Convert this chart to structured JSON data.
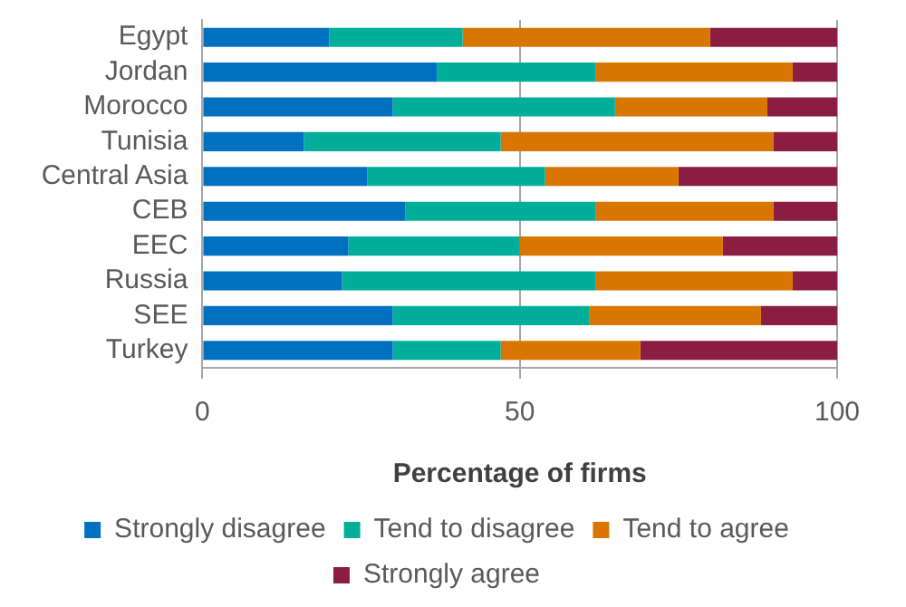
{
  "chart_data": {
    "type": "bar",
    "orientation": "horizontal",
    "stacked": true,
    "xlabel": "Percentage of firms",
    "categories": [
      "Egypt",
      "Jordan",
      "Morocco",
      "Tunisia",
      "Central Asia",
      "CEB",
      "EEC",
      "Russia",
      "SEE",
      "Turkey"
    ],
    "series": [
      {
        "name": "Strongly disagree",
        "color": "#0070c0",
        "values": [
          20,
          37,
          30,
          16,
          26,
          32,
          23,
          22,
          30,
          30
        ]
      },
      {
        "name": "Tend to disagree",
        "color": "#00ae9a",
        "values": [
          21,
          25,
          35,
          31,
          28,
          30,
          27,
          40,
          31,
          17
        ]
      },
      {
        "name": "Tend to agree",
        "color": "#d97600",
        "values": [
          39,
          31,
          24,
          43,
          21,
          28,
          32,
          31,
          27,
          22
        ]
      },
      {
        "name": "Strongly agree",
        "color": "#8b1c42",
        "values": [
          20,
          7,
          11,
          10,
          25,
          10,
          18,
          7,
          12,
          31
        ]
      }
    ],
    "xlim": [
      0,
      100
    ],
    "xticks": [
      0,
      50,
      100
    ],
    "grid": "x",
    "legend": "bottom"
  }
}
